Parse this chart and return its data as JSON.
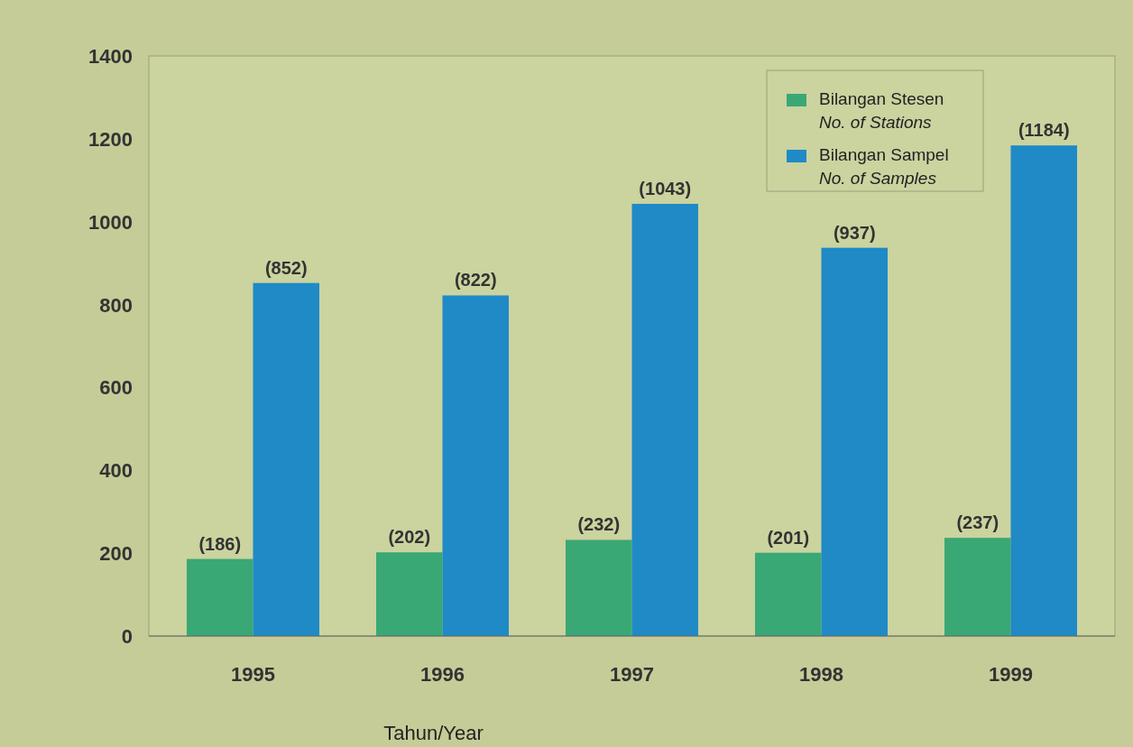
{
  "chart_data": {
    "type": "bar",
    "categories": [
      "1995",
      "1996",
      "1997",
      "1998",
      "1999"
    ],
    "series": [
      {
        "name": "Bilangan Stesen\nNo. of Stations",
        "color": "#3aa874",
        "values": [
          186,
          202,
          232,
          201,
          237
        ],
        "value_labels": [
          "(186)",
          "(202)",
          "(232)",
          "(201)",
          "(237)"
        ]
      },
      {
        "name": "Bilangan Sampel\nNo. of Samples",
        "color": "#1f8ac6",
        "values": [
          852,
          822,
          1043,
          937,
          1184
        ],
        "value_labels": [
          "(852)",
          "(822)",
          "(1043)",
          "(937)",
          "(1184)"
        ]
      }
    ],
    "xlabel": "Tahun/Year",
    "ylim": [
      0,
      1400
    ],
    "yticks": [
      0,
      200,
      400,
      600,
      800,
      1000,
      1200,
      1400
    ],
    "legend": "top right",
    "grid": false
  }
}
